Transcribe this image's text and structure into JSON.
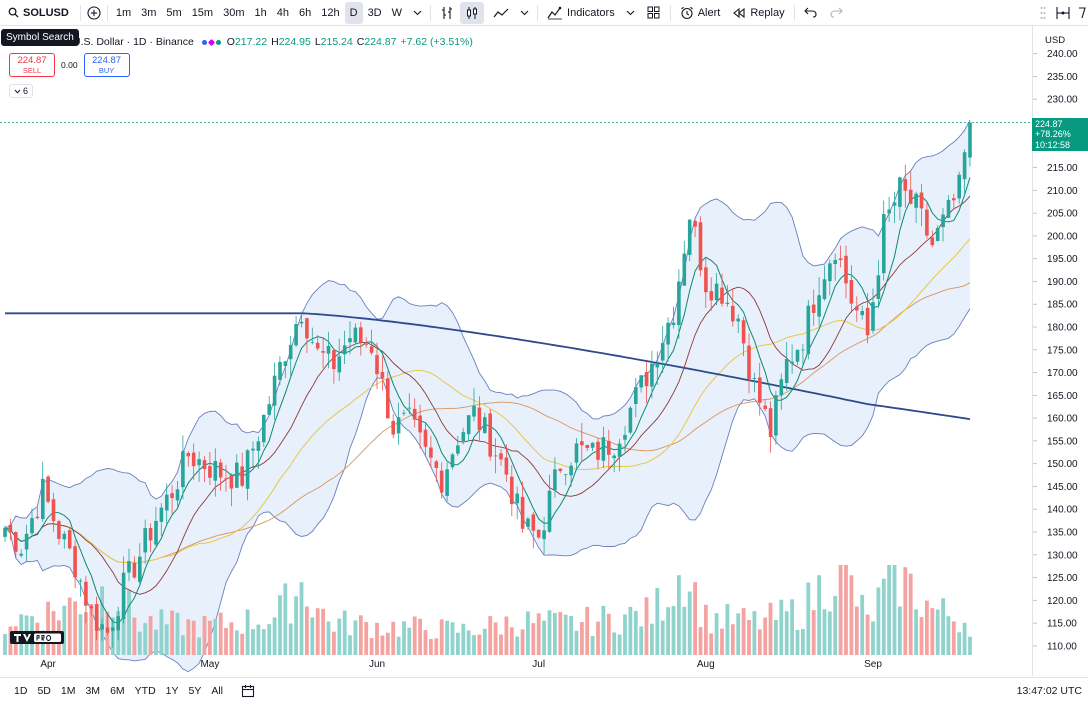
{
  "toolbar": {
    "symbol": "SOLUSD",
    "intervals": [
      "1m",
      "3m",
      "5m",
      "15m",
      "30m",
      "1h",
      "4h",
      "6h",
      "12h",
      "D",
      "3D",
      "W"
    ],
    "active_interval": "D",
    "indicators_label": "Indicators",
    "alert_label": "Alert",
    "replay_label": "Replay",
    "tooltip": "Symbol Search"
  },
  "legend": {
    "title": "U.S. Dollar · 1D · Binance",
    "open_label": "O",
    "open": "217.22",
    "high_label": "H",
    "high": "224.95",
    "low_label": "L",
    "low": "215.24",
    "close_label": "C",
    "close": "224.87",
    "change": "+7.62 (+3.51%)",
    "indicator_count": "6"
  },
  "trade": {
    "sell_price": "224.87",
    "sell_label": "SELL",
    "spread": "0.00",
    "buy_price": "224.87",
    "buy_label": "BUY"
  },
  "price_scale": {
    "currency": "USD",
    "last_price": "224.87",
    "last_change": "+78.26%",
    "countdown": "10:12:58"
  },
  "bottom": {
    "ranges": [
      "1D",
      "5D",
      "1M",
      "3M",
      "6M",
      "YTD",
      "1Y",
      "5Y",
      "All"
    ],
    "clock": "13:47:02 UTC"
  },
  "colors": {
    "up": "#26a69a",
    "down": "#ef5350",
    "ma_long": "#2c4a8c",
    "ma_short": "#0b8a72",
    "ma_mid": "#8b3a3a",
    "ma_yellow": "#e6c84a",
    "ma_orange": "#d9955e",
    "bb": "#6b7fbf",
    "bb_fill": "#e8f0fb"
  },
  "chart_data": {
    "type": "candlestick",
    "ylim": [
      108,
      243
    ],
    "y_ticks": [
      110,
      115,
      120,
      125,
      130,
      135,
      140,
      145,
      150,
      155,
      160,
      165,
      170,
      175,
      180,
      185,
      190,
      195,
      200,
      205,
      210,
      215,
      220,
      225,
      230,
      235,
      240
    ],
    "x_ticks": [
      {
        "label": "Apr",
        "x": 8
      },
      {
        "label": "May",
        "x": 38
      },
      {
        "label": "Jun",
        "x": 69
      },
      {
        "label": "Jul",
        "x": 99
      },
      {
        "label": "Aug",
        "x": 130
      },
      {
        "label": "Sep",
        "x": 161
      }
    ],
    "x_count": 180,
    "close_key": [
      [
        0,
        136
      ],
      [
        3,
        132
      ],
      [
        7,
        144
      ],
      [
        10,
        135
      ],
      [
        13,
        128
      ],
      [
        16,
        117
      ],
      [
        19,
        113
      ],
      [
        22,
        123
      ],
      [
        25,
        130
      ],
      [
        28,
        138
      ],
      [
        31,
        144
      ],
      [
        34,
        152
      ],
      [
        37,
        150
      ],
      [
        40,
        148
      ],
      [
        44,
        147
      ],
      [
        48,
        160
      ],
      [
        52,
        175
      ],
      [
        55,
        184
      ],
      [
        58,
        174
      ],
      [
        61,
        172
      ],
      [
        64,
        178
      ],
      [
        68,
        176
      ],
      [
        72,
        158
      ],
      [
        75,
        159
      ],
      [
        78,
        152
      ],
      [
        81,
        147
      ],
      [
        84,
        156
      ],
      [
        87,
        161
      ],
      [
        90,
        155
      ],
      [
        93,
        148
      ],
      [
        96,
        136
      ],
      [
        99,
        134
      ],
      [
        103,
        150
      ],
      [
        106,
        153
      ],
      [
        109,
        152
      ],
      [
        113,
        155
      ],
      [
        116,
        162
      ],
      [
        120,
        172
      ],
      [
        124,
        184
      ],
      [
        127,
        205
      ],
      [
        130,
        190
      ],
      [
        133,
        188
      ],
      [
        136,
        182
      ],
      [
        139,
        167
      ],
      [
        142,
        157
      ],
      [
        145,
        172
      ],
      [
        148,
        178
      ],
      [
        151,
        190
      ],
      [
        154,
        198
      ],
      [
        157,
        186
      ],
      [
        160,
        178
      ],
      [
        163,
        202
      ],
      [
        166,
        210
      ],
      [
        169,
        206
      ],
      [
        172,
        198
      ],
      [
        175,
        205
      ],
      [
        177,
        210
      ],
      [
        179,
        224.87
      ]
    ],
    "volume_key": [
      [
        0,
        40
      ],
      [
        10,
        55
      ],
      [
        20,
        80
      ],
      [
        25,
        40
      ],
      [
        37,
        35
      ],
      [
        50,
        45
      ],
      [
        55,
        85
      ],
      [
        60,
        40
      ],
      [
        70,
        35
      ],
      [
        85,
        30
      ],
      [
        95,
        40
      ],
      [
        105,
        38
      ],
      [
        120,
        50
      ],
      [
        126,
        105
      ],
      [
        130,
        45
      ],
      [
        140,
        40
      ],
      [
        148,
        55
      ],
      [
        155,
        110
      ],
      [
        160,
        40
      ],
      [
        165,
        100
      ],
      [
        172,
        55
      ],
      [
        179,
        40
      ]
    ]
  }
}
